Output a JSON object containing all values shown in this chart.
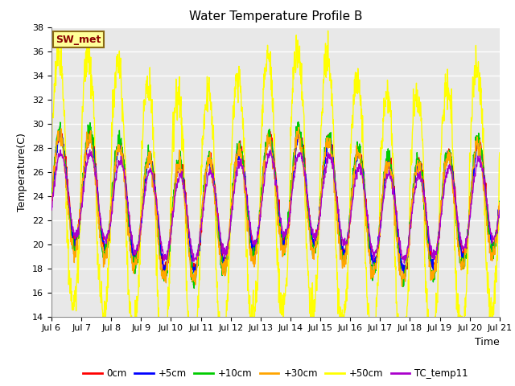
{
  "title": "Water Temperature Profile B",
  "xlabel": "Time",
  "ylabel": "Temperature(C)",
  "ylim": [
    14,
    38
  ],
  "yticks": [
    14,
    16,
    18,
    20,
    22,
    24,
    26,
    28,
    30,
    32,
    34,
    36,
    38
  ],
  "xtick_labels": [
    "Jul 6",
    "Jul 7",
    "Jul 8",
    "Jul 9",
    "Jul 10",
    "Jul 11",
    "Jul 12",
    "Jul 13",
    "Jul 14",
    "Jul 15",
    "Jul 16",
    "Jul 17",
    "Jul 18",
    "Jul 19",
    "Jul 20",
    "Jul 21"
  ],
  "series_colors": {
    "0cm": "#ff0000",
    "+5cm": "#0000ff",
    "+10cm": "#00cc00",
    "+30cm": "#ffa500",
    "+50cm": "#ffff00",
    "TC_temp11": "#aa00cc"
  },
  "background_color": "#e8e8e8",
  "fig_bg": "#ffffff",
  "annotation_text": "SW_met",
  "annotation_color": "#8b0000",
  "annotation_bg": "#ffff99",
  "annotation_border": "#8b6914",
  "line_width": 1.0,
  "grid_color": "#ffffff",
  "grid_lw": 1.0
}
